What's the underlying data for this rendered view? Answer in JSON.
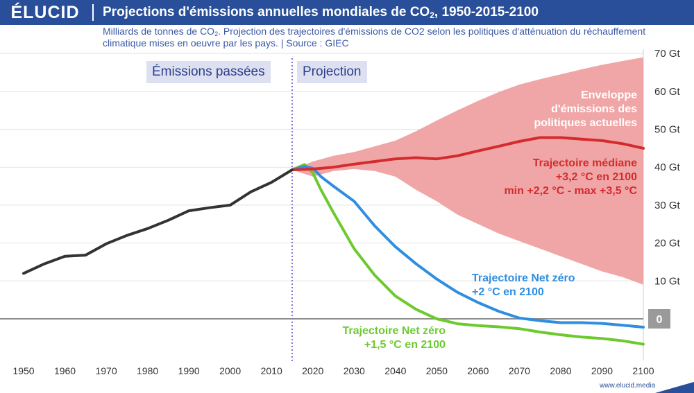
{
  "header": {
    "logo": "ÉLUCID",
    "title_main": "Projections d'émissions annuelles mondiales de CO",
    "title_sub": "2",
    "title_end": ", 1950-2015-2100"
  },
  "subtitle": {
    "part1": "Milliards de tonnes de CO",
    "sub": "2",
    "part2": ". Projection des trajectoires d'émissions de CO2 selon les politiques d'atténuation du réchauffement climatique mises en oeuvre par les pays.  |  Source : GIEC"
  },
  "labels": {
    "past": "Émissions passées",
    "projection": "Projection",
    "envelope": "Enveloppe\nd'émissions des\npolitiques actuelles",
    "median": "Trajectoire médiane\n+3,2 °C en 2100\nmin +2,2 °C - max +3,5 °C",
    "netzero_2": "Trajectoire Net zéro\n+2 °C en 2100",
    "netzero_15": "Trajectoire Net zéro\n+1,5 °C en 2100"
  },
  "footer": {
    "url": "www.elucid.media"
  },
  "colors": {
    "brand": "#2a4f9a",
    "historical": "#333333",
    "median": "#d42b2e",
    "envelope": "#f0a6a6",
    "netzero_2": "#2f8ee0",
    "netzero_15": "#6cca2f",
    "divider": "#7f72d6"
  },
  "chart_data": {
    "type": "line",
    "xlim": [
      1950,
      2100
    ],
    "ylim": [
      -7,
      70
    ],
    "y_ticks": [
      0,
      10,
      20,
      30,
      40,
      50,
      60,
      70
    ],
    "y_tick_labels": [
      "0",
      "10 Gt",
      "20 Gt",
      "30 Gt",
      "40 Gt",
      "50 Gt",
      "60 Gt",
      "70 Gt"
    ],
    "x_ticks": [
      1950,
      1960,
      1970,
      1980,
      1990,
      2000,
      2010,
      2020,
      2030,
      2040,
      2050,
      2060,
      2070,
      2080,
      2090,
      2100
    ],
    "grid": true,
    "divider_year": 2015,
    "series": [
      {
        "key": "historical",
        "x": [
          1950,
          1955,
          1960,
          1965,
          1970,
          1975,
          1980,
          1985,
          1990,
          1995,
          2000,
          2005,
          2010,
          2015
        ],
        "y": [
          12,
          14.5,
          16.5,
          16.8,
          19.8,
          22,
          23.8,
          26,
          28.5,
          29.3,
          30,
          33.5,
          36,
          39.3
        ]
      },
      {
        "key": "median",
        "name": "Trajectoire médiane",
        "x": [
          2015,
          2020,
          2025,
          2030,
          2035,
          2040,
          2045,
          2050,
          2055,
          2060,
          2065,
          2070,
          2075,
          2080,
          2085,
          2090,
          2095,
          2100
        ],
        "y": [
          39.3,
          39.5,
          40,
          40.8,
          41.5,
          42.2,
          42.5,
          42.2,
          43,
          44.3,
          45.5,
          46.8,
          47.8,
          47.8,
          47.4,
          47,
          46.2,
          45
        ]
      },
      {
        "key": "netzero_2",
        "name": "Trajectoire Net zéro",
        "x": [
          2015,
          2018,
          2020,
          2022,
          2025,
          2030,
          2035,
          2040,
          2045,
          2050,
          2055,
          2060,
          2065,
          2070,
          2075,
          2080,
          2085,
          2090,
          2095,
          2100
        ],
        "y": [
          39.3,
          40.2,
          39.7,
          37.5,
          35,
          31,
          24.5,
          19,
          14.5,
          10.5,
          7,
          4.3,
          2,
          0.2,
          -0.5,
          -1,
          -1,
          -1.2,
          -1.7,
          -2.2
        ]
      },
      {
        "key": "netzero_15",
        "name": "Trajectoire Net zéro",
        "x": [
          2015,
          2018,
          2020,
          2022,
          2025,
          2030,
          2035,
          2040,
          2045,
          2050,
          2055,
          2060,
          2065,
          2070,
          2075,
          2080,
          2085,
          2090,
          2095,
          2100
        ],
        "y": [
          39.3,
          40.7,
          38.5,
          34,
          28,
          18.5,
          11.5,
          6,
          2.5,
          0,
          -1.3,
          -1.8,
          -2.1,
          -2.6,
          -3.5,
          -4.2,
          -4.8,
          -5.2,
          -5.8,
          -6.7
        ]
      }
    ],
    "envelope": {
      "x": [
        2015,
        2020,
        2025,
        2030,
        2035,
        2040,
        2045,
        2050,
        2055,
        2060,
        2065,
        2070,
        2075,
        2080,
        2085,
        2090,
        2095,
        2100
      ],
      "upper": [
        39.3,
        41.5,
        43,
        44,
        45.5,
        47,
        49.5,
        52.3,
        55,
        57.5,
        59.8,
        61.8,
        63.2,
        64.5,
        65.8,
        67,
        68,
        69
      ],
      "lower": [
        39.3,
        37.5,
        39,
        39.5,
        39,
        37.5,
        34,
        31,
        27.5,
        25,
        22.5,
        20.5,
        18.5,
        16.5,
        14.5,
        12.5,
        11,
        9
      ]
    }
  }
}
